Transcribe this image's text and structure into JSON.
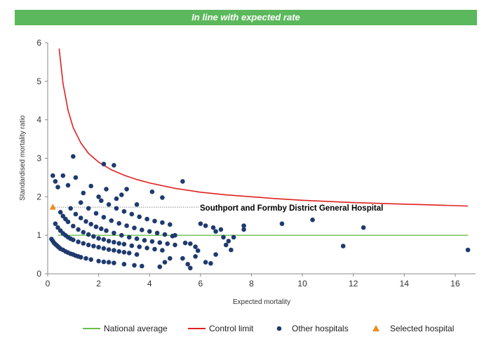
{
  "banner": {
    "title": "In line with expected rate"
  },
  "annotation": {
    "label": "Southport and Formby District General Hospital"
  },
  "colors": {
    "banner": "#5cb85c",
    "national_average": "#6abf4b",
    "control_limit": "#e02020",
    "other_hospitals": "#1f3a6e",
    "selected_hospital": "#ef8a1f"
  },
  "chart_data": {
    "type": "scatter",
    "xlabel": "Expected mortality",
    "ylabel": "Standardised mortality ratio",
    "xlim": [
      0,
      16.8
    ],
    "ylim": [
      0,
      6
    ],
    "xticks": [
      0,
      2,
      4,
      6,
      8,
      10,
      12,
      14,
      16
    ],
    "yticks": [
      0,
      1,
      2,
      3,
      4,
      5,
      6
    ],
    "legend_position": "bottom",
    "series": [
      {
        "name": "National average",
        "kind": "line",
        "points": [
          [
            0.4,
            1
          ],
          [
            16.5,
            1
          ]
        ]
      },
      {
        "name": "Control limit",
        "kind": "line",
        "points": [
          [
            0.45,
            5.85
          ],
          [
            0.6,
            4.95
          ],
          [
            0.8,
            4.25
          ],
          [
            1.0,
            3.8
          ],
          [
            1.3,
            3.4
          ],
          [
            1.6,
            3.13
          ],
          [
            2.0,
            2.9
          ],
          [
            2.5,
            2.7
          ],
          [
            3.0,
            2.56
          ],
          [
            3.5,
            2.45
          ],
          [
            4.0,
            2.36
          ],
          [
            5.0,
            2.22
          ],
          [
            6.0,
            2.12
          ],
          [
            7.0,
            2.05
          ],
          [
            8.0,
            2.0
          ],
          [
            9.0,
            1.95
          ],
          [
            10.0,
            1.91
          ],
          [
            11.0,
            1.88
          ],
          [
            12.0,
            1.85
          ],
          [
            13.0,
            1.83
          ],
          [
            14.0,
            1.81
          ],
          [
            15.0,
            1.79
          ],
          [
            16.5,
            1.76
          ]
        ]
      },
      {
        "name": "Other hospitals",
        "kind": "scatter",
        "points": [
          [
            0.15,
            0.9
          ],
          [
            0.2,
            0.85
          ],
          [
            0.25,
            0.8
          ],
          [
            0.3,
            0.77
          ],
          [
            0.35,
            0.74
          ],
          [
            0.4,
            0.71
          ],
          [
            0.45,
            0.68
          ],
          [
            0.5,
            0.65
          ],
          [
            0.6,
            0.62
          ],
          [
            0.7,
            0.58
          ],
          [
            0.8,
            0.55
          ],
          [
            0.9,
            0.52
          ],
          [
            1.0,
            0.5
          ],
          [
            1.1,
            0.47
          ],
          [
            1.2,
            0.45
          ],
          [
            1.3,
            0.43
          ],
          [
            1.5,
            0.4
          ],
          [
            1.7,
            0.37
          ],
          [
            2.0,
            0.33
          ],
          [
            2.2,
            0.31
          ],
          [
            2.4,
            0.3
          ],
          [
            2.6,
            0.28
          ],
          [
            0.3,
            1.3
          ],
          [
            0.4,
            1.2
          ],
          [
            0.5,
            1.12
          ],
          [
            0.6,
            1.05
          ],
          [
            0.7,
            1.0
          ],
          [
            0.8,
            0.95
          ],
          [
            0.9,
            0.91
          ],
          [
            1.0,
            0.88
          ],
          [
            1.2,
            0.83
          ],
          [
            1.4,
            0.79
          ],
          [
            1.6,
            0.75
          ],
          [
            1.8,
            0.72
          ],
          [
            2.0,
            0.69
          ],
          [
            2.2,
            0.66
          ],
          [
            2.4,
            0.63
          ],
          [
            2.6,
            0.61
          ],
          [
            2.8,
            0.58
          ],
          [
            3.0,
            0.56
          ],
          [
            3.2,
            0.54
          ],
          [
            3.5,
            0.5
          ],
          [
            0.5,
            1.6
          ],
          [
            0.6,
            1.5
          ],
          [
            0.7,
            1.42
          ],
          [
            0.8,
            1.35
          ],
          [
            1.0,
            1.24
          ],
          [
            1.2,
            1.15
          ],
          [
            1.4,
            1.08
          ],
          [
            1.6,
            1.02
          ],
          [
            1.8,
            0.97
          ],
          [
            2.0,
            0.92
          ],
          [
            2.2,
            0.89
          ],
          [
            2.4,
            0.85
          ],
          [
            2.6,
            0.82
          ],
          [
            2.8,
            0.79
          ],
          [
            3.0,
            0.77
          ],
          [
            3.3,
            0.73
          ],
          [
            3.6,
            0.7
          ],
          [
            3.9,
            0.67
          ],
          [
            4.2,
            0.64
          ],
          [
            4.5,
            0.61
          ],
          [
            0.9,
            1.7
          ],
          [
            1.1,
            1.55
          ],
          [
            1.3,
            1.45
          ],
          [
            1.5,
            1.36
          ],
          [
            1.7,
            1.29
          ],
          [
            1.9,
            1.22
          ],
          [
            2.1,
            1.17
          ],
          [
            2.3,
            1.12
          ],
          [
            2.6,
            1.06
          ],
          [
            2.9,
            1.0
          ],
          [
            3.2,
            0.95
          ],
          [
            3.5,
            0.91
          ],
          [
            3.8,
            0.87
          ],
          [
            4.1,
            0.84
          ],
          [
            4.4,
            0.81
          ],
          [
            4.7,
            0.78
          ],
          [
            5.0,
            0.75
          ],
          [
            1.3,
            1.85
          ],
          [
            1.6,
            1.7
          ],
          [
            1.9,
            1.57
          ],
          [
            2.2,
            1.47
          ],
          [
            2.5,
            1.38
          ],
          [
            2.8,
            1.31
          ],
          [
            3.1,
            1.25
          ],
          [
            3.4,
            1.19
          ],
          [
            3.7,
            1.14
          ],
          [
            4.0,
            1.1
          ],
          [
            4.3,
            1.06
          ],
          [
            4.6,
            1.02
          ],
          [
            4.9,
            0.98
          ],
          [
            2.1,
            1.9
          ],
          [
            2.4,
            1.8
          ],
          [
            2.7,
            1.7
          ],
          [
            3.0,
            1.62
          ],
          [
            3.3,
            1.55
          ],
          [
            3.6,
            1.48
          ],
          [
            3.9,
            1.42
          ],
          [
            4.2,
            1.37
          ],
          [
            4.5,
            1.33
          ],
          [
            4.8,
            1.28
          ],
          [
            0.2,
            2.55
          ],
          [
            0.3,
            2.4
          ],
          [
            0.4,
            2.25
          ],
          [
            0.6,
            2.55
          ],
          [
            0.8,
            2.3
          ],
          [
            1.0,
            3.05
          ],
          [
            1.1,
            2.5
          ],
          [
            1.4,
            2.1
          ],
          [
            1.7,
            2.28
          ],
          [
            2.0,
            2.0
          ],
          [
            2.2,
            2.85
          ],
          [
            2.3,
            2.2
          ],
          [
            2.6,
            2.82
          ],
          [
            2.7,
            1.95
          ],
          [
            2.9,
            2.05
          ],
          [
            3.1,
            2.2
          ],
          [
            3.5,
            1.8
          ],
          [
            4.1,
            2.13
          ],
          [
            4.5,
            1.98
          ],
          [
            5.3,
            2.4
          ],
          [
            3.0,
            0.25
          ],
          [
            3.4,
            0.22
          ],
          [
            3.7,
            0.2
          ],
          [
            4.4,
            0.18
          ],
          [
            4.6,
            0.3
          ],
          [
            4.8,
            0.4
          ],
          [
            5.3,
            0.4
          ],
          [
            5.5,
            0.25
          ],
          [
            5.6,
            0.15
          ],
          [
            5.8,
            0.45
          ],
          [
            5.9,
            0.6
          ],
          [
            6.2,
            0.3
          ],
          [
            6.4,
            0.27
          ],
          [
            6.6,
            0.5
          ],
          [
            5.0,
            1.0
          ],
          [
            5.4,
            0.8
          ],
          [
            5.6,
            0.78
          ],
          [
            5.8,
            0.7
          ],
          [
            6.0,
            1.3
          ],
          [
            6.2,
            1.25
          ],
          [
            6.5,
            1.2
          ],
          [
            6.6,
            1.1
          ],
          [
            6.8,
            1.15
          ],
          [
            6.9,
            0.95
          ],
          [
            7.0,
            0.75
          ],
          [
            7.1,
            0.85
          ],
          [
            7.2,
            0.62
          ],
          [
            7.3,
            0.95
          ],
          [
            7.7,
            1.25
          ],
          [
            7.7,
            1.15
          ],
          [
            9.2,
            1.3
          ],
          [
            10.4,
            1.4
          ],
          [
            11.6,
            0.72
          ],
          [
            12.4,
            1.2
          ],
          [
            16.5,
            0.62
          ]
        ]
      },
      {
        "name": "Selected hospital",
        "kind": "marker",
        "points": [
          [
            0.2,
            1.73
          ]
        ]
      }
    ]
  },
  "legend": {
    "items": [
      {
        "label": "National average",
        "type": "line",
        "color": "#6abf4b"
      },
      {
        "label": "Control limit",
        "type": "line",
        "color": "#e02020"
      },
      {
        "label": "Other hospitals",
        "type": "dot",
        "color": "#1f3a6e"
      },
      {
        "label": "Selected hospital",
        "type": "triangle",
        "color": "#ef8a1f"
      }
    ]
  }
}
